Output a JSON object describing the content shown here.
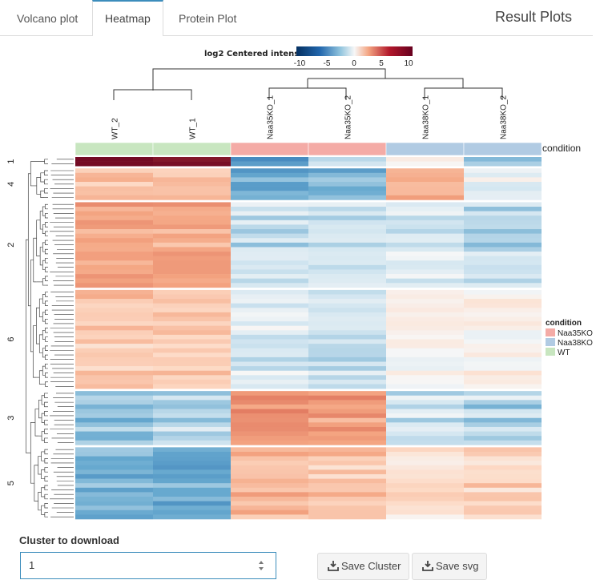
{
  "tabs": [
    {
      "label": "Volcano plot",
      "active": false
    },
    {
      "label": "Heatmap",
      "active": true
    },
    {
      "label": "Protein Plot",
      "active": false
    }
  ],
  "header": {
    "title": "Result Plots"
  },
  "heatmap": {
    "colorbar": {
      "title": "log2 Centered intens",
      "ticks": [
        "-10",
        "-5",
        "0",
        "5",
        "10"
      ],
      "colors": {
        "low": "#053061",
        "mid": "#f7f7f7",
        "high": "#67001f"
      }
    },
    "columns": [
      "WT_2",
      "WT_1",
      "Naa35KO_1",
      "Naa35KO_2",
      "Naa38KO_1",
      "Naa38KO_2"
    ],
    "column_conditions": [
      "WT",
      "WT",
      "Naa35KO",
      "Naa35KO",
      "Naa38KO",
      "Naa38KO"
    ],
    "annotation_label": "condition",
    "legend": {
      "title": "condition",
      "items": [
        {
          "label": "Naa35KO",
          "color": "#f4aba6"
        },
        {
          "label": "Naa38KO",
          "color": "#b1cbe3"
        },
        {
          "label": "WT",
          "color": "#c8e6c0"
        }
      ]
    },
    "clusters": [
      {
        "id": "1",
        "rows": 2,
        "profile": [
          9.5,
          9.5,
          -4,
          -1.5,
          0.5,
          -2
        ]
      },
      {
        "id": "4",
        "rows": 7,
        "profile": [
          2,
          2,
          -3,
          -2.5,
          2.5,
          -0.5
        ]
      },
      {
        "id": "2",
        "rows": 19,
        "profile": [
          3,
          3,
          -1.2,
          -1,
          -0.8,
          -1.3
        ]
      },
      {
        "id": "6",
        "rows": 22,
        "profile": [
          2,
          2,
          -0.8,
          -1.2,
          0.4,
          0.3
        ]
      },
      {
        "id": "3",
        "rows": 12,
        "profile": [
          -2,
          -1.5,
          4,
          3.5,
          -1,
          -1.5
        ]
      },
      {
        "id": "5",
        "rows": 16,
        "profile": [
          -2.5,
          -3,
          2.5,
          2,
          1,
          1.5
        ]
      }
    ]
  },
  "download": {
    "label": "Cluster to download",
    "value": "1",
    "save_cluster_label": "Save Cluster",
    "save_svg_label": "Save svg"
  }
}
